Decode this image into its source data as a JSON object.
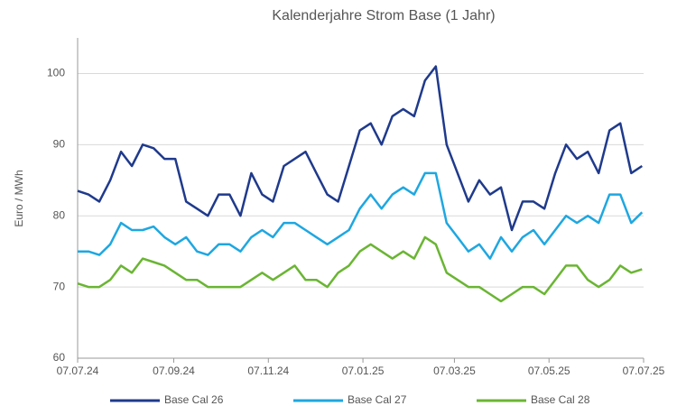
{
  "chart_data": {
    "type": "line",
    "title": "Kalenderjahre Strom Base (1 Jahr)",
    "y_label": "Euro / MWh",
    "x": [
      "07.07.24",
      "14.07.24",
      "21.07.24",
      "28.07.24",
      "04.08.24",
      "11.08.24",
      "18.08.24",
      "25.08.24",
      "01.09.24",
      "08.09.24",
      "15.09.24",
      "22.09.24",
      "29.09.24",
      "06.10.24",
      "13.10.24",
      "20.10.24",
      "27.10.24",
      "03.11.24",
      "10.11.24",
      "17.11.24",
      "24.11.24",
      "01.12.24",
      "08.12.24",
      "15.12.24",
      "22.12.24",
      "29.12.24",
      "05.01.25",
      "12.01.25",
      "19.01.25",
      "26.01.25",
      "02.02.25",
      "09.02.25",
      "16.02.25",
      "23.02.25",
      "02.03.25",
      "09.03.25",
      "16.03.25",
      "23.03.25",
      "30.03.25",
      "06.04.25",
      "13.04.25",
      "20.04.25",
      "27.04.25",
      "04.05.25",
      "11.05.25",
      "18.05.25",
      "25.05.25",
      "01.06.25",
      "08.06.25",
      "15.06.25",
      "22.06.25",
      "29.06.25",
      "06.07.25"
    ],
    "series": [
      {
        "name": "Base Cal 26",
        "color": "#1f3a8c",
        "values": [
          83.5,
          83,
          82,
          85,
          89,
          87,
          90,
          89.5,
          88,
          88,
          82,
          81,
          80,
          83,
          83,
          80,
          86,
          83,
          82,
          87,
          88,
          89,
          86,
          83,
          82,
          87,
          92,
          93,
          90,
          94,
          95,
          94,
          99,
          101,
          90,
          86,
          82,
          85,
          83,
          84,
          78,
          82,
          82,
          81,
          86,
          90,
          88,
          89,
          86,
          92,
          93,
          86,
          87
        ]
      },
      {
        "name": "Base Cal 27",
        "color": "#1ea7e1",
        "values": [
          75,
          75,
          74.5,
          76,
          79,
          78,
          78,
          78.5,
          77,
          76,
          77,
          75,
          74.5,
          76,
          76,
          75,
          77,
          78,
          77,
          79,
          79,
          78,
          77,
          76,
          77,
          78,
          81,
          83,
          81,
          83,
          84,
          83,
          86,
          86,
          79,
          77,
          75,
          76,
          74,
          77,
          75,
          77,
          78,
          76,
          78,
          80,
          79,
          80,
          79,
          83,
          83,
          79,
          80.5
        ]
      },
      {
        "name": "Base Cal 28",
        "color": "#6ab533",
        "values": [
          70.5,
          70,
          70,
          71,
          73,
          72,
          74,
          73.5,
          73,
          72,
          71,
          71,
          70,
          70,
          70,
          70,
          71,
          72,
          71,
          72,
          73,
          71,
          71,
          70,
          72,
          73,
          75,
          76,
          75,
          74,
          75,
          74,
          77,
          76,
          72,
          71,
          70,
          70,
          69,
          68,
          69,
          70,
          70,
          69,
          71,
          73,
          73,
          71,
          70,
          71,
          73,
          72,
          72.5
        ]
      }
    ],
    "xlim": [
      "07.07.24",
      "07.07.25"
    ],
    "xticks": [
      "07.07.24",
      "07.09.24",
      "07.11.24",
      "07.01.25",
      "07.03.25",
      "07.05.25",
      "07.07.25"
    ],
    "ylim": [
      60,
      105
    ],
    "yticks": [
      60,
      70,
      80,
      90,
      100
    ],
    "grid": true,
    "legend": "bottom"
  }
}
